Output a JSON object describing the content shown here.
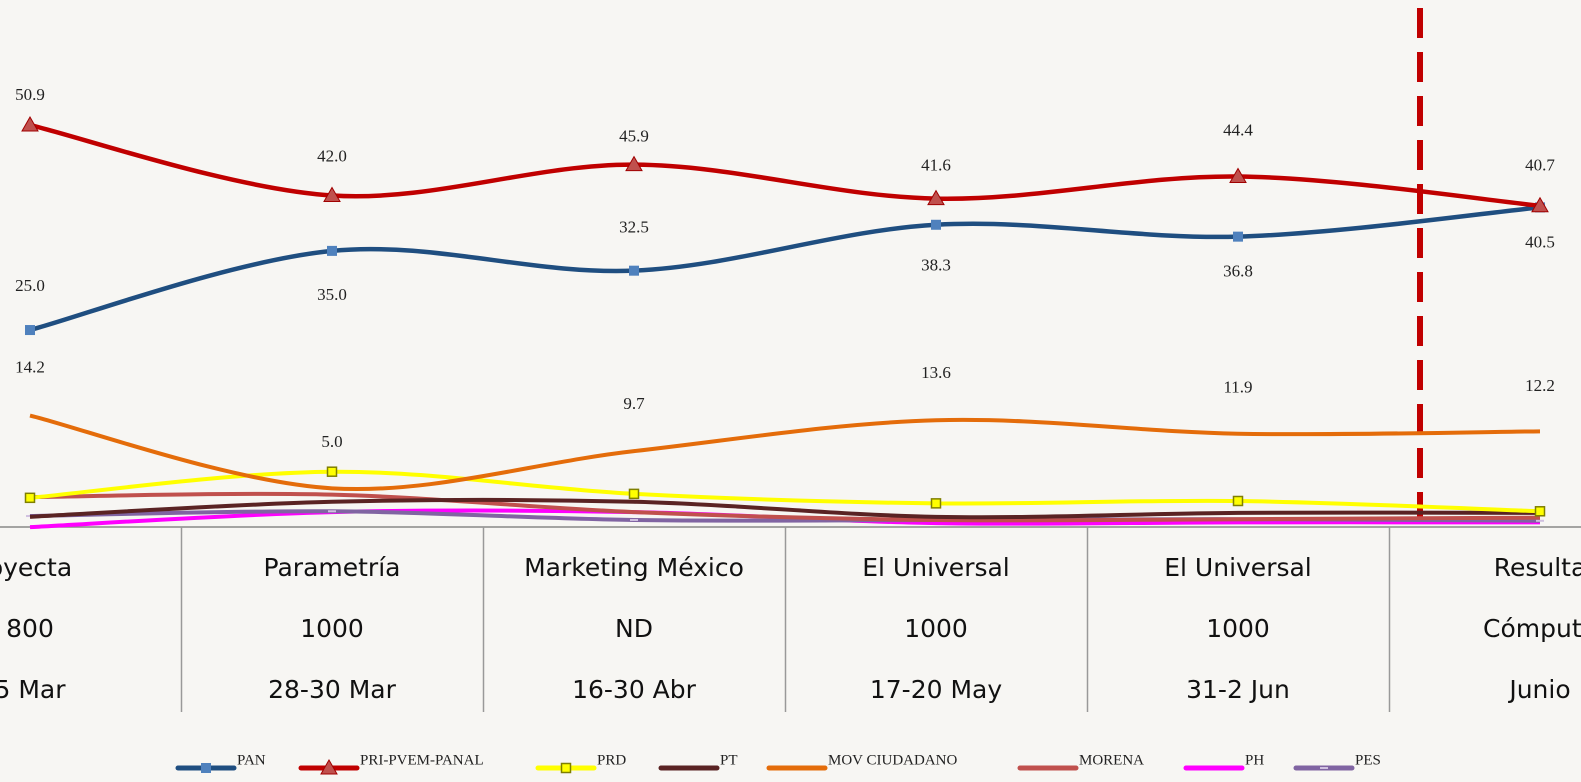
{
  "chart_data": {
    "type": "line",
    "categories": [
      "oyecta",
      "Parametría",
      "Marketing México",
      "El Universal",
      "El Universal",
      "Resulta"
    ],
    "sample_sizes": [
      "800",
      "1000",
      "ND",
      "1000",
      "1000",
      "Cómputo"
    ],
    "dates": [
      "5 Mar",
      "28-30 Mar",
      "16-30 Abr",
      "17-20 May",
      "31-2 Jun",
      "Junio"
    ],
    "ylim": [
      0,
      66.7
    ],
    "series": [
      {
        "name": "PAN",
        "color": "#1f4e80",
        "marker": "square",
        "values": [
          25.0,
          35.0,
          32.5,
          38.3,
          36.8,
          40.5
        ],
        "value_labels": [
          "25.0",
          "35.0",
          "32.5",
          "38.3",
          "36.8",
          "40.5"
        ]
      },
      {
        "name": "PRI-PVEM-PANAL",
        "color": "#c00000",
        "marker": "triangle",
        "values": [
          50.9,
          42.0,
          45.9,
          41.6,
          44.4,
          40.7
        ],
        "value_labels": [
          "50.9",
          "42.0",
          "45.9",
          "41.6",
          "44.4",
          "40.7"
        ]
      },
      {
        "name": "PRD",
        "color": "#ffff00",
        "marker": "small-square",
        "values": [
          3.8,
          7.1,
          4.3,
          3.1,
          3.4,
          2.1
        ]
      },
      {
        "name": "PT",
        "color": "#5a2323",
        "marker": "none",
        "values": [
          1.4,
          3.3,
          3.3,
          1.4,
          1.9,
          1.9
        ]
      },
      {
        "name": "MOV CIUDADANO",
        "color": "#e46c0a",
        "marker": "none",
        "values": [
          14.2,
          5.0,
          9.7,
          13.6,
          11.9,
          12.2
        ],
        "value_labels": [
          "14.2",
          "5.0",
          "9.7",
          "13.6",
          "11.9",
          "12.2"
        ]
      },
      {
        "name": "MORENA",
        "color": "#c0504d",
        "marker": "none",
        "values": [
          3.9,
          4.2,
          2.0,
          1.0,
          1.1,
          1.3
        ]
      },
      {
        "name": "PH",
        "color": "#ff00ff",
        "marker": "none",
        "values": [
          0.1,
          2.0,
          2.0,
          0.6,
          0.7,
          0.7
        ]
      },
      {
        "name": "PES",
        "color": "#8064a2",
        "marker": "dash",
        "values": [
          1.5,
          2.1,
          1.0,
          1.0,
          1.1,
          0.9
        ]
      }
    ]
  }
}
